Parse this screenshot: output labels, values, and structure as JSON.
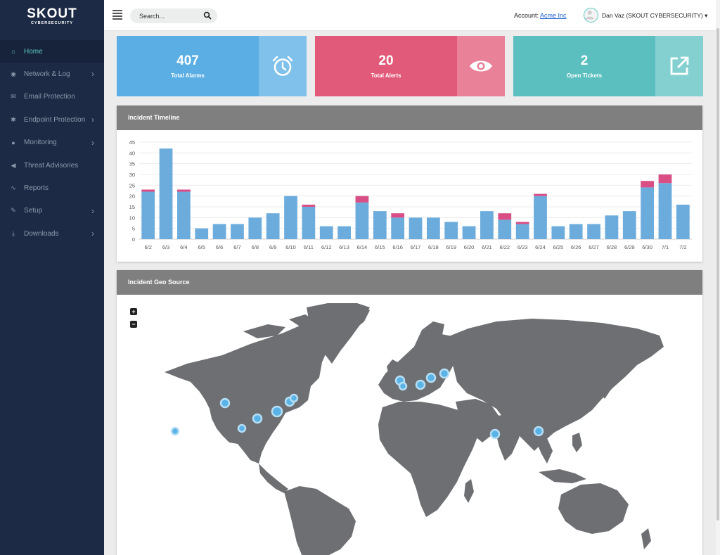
{
  "brand": {
    "name": "SKOUT",
    "sub": "CYBERSECURITY"
  },
  "sidebar": {
    "items": [
      {
        "label": "Home",
        "icon": "home-icon",
        "active": true,
        "has_children": false
      },
      {
        "label": "Network & Log",
        "icon": "network-icon",
        "active": false,
        "has_children": true
      },
      {
        "label": "Email Protection",
        "icon": "envelope-icon",
        "active": false,
        "has_children": false
      },
      {
        "label": "Endpoint Protection",
        "icon": "bug-icon",
        "active": false,
        "has_children": true
      },
      {
        "label": "Monitoring",
        "icon": "map-marker-icon",
        "active": false,
        "has_children": true
      },
      {
        "label": "Threat Advisories",
        "icon": "bullhorn-icon",
        "active": false,
        "has_children": false
      },
      {
        "label": "Reports",
        "icon": "line-chart-icon",
        "active": false,
        "has_children": false
      },
      {
        "label": "Setup",
        "icon": "wrench-icon",
        "active": false,
        "has_children": true
      },
      {
        "label": "Downloads",
        "icon": "download-icon",
        "active": false,
        "has_children": true
      }
    ]
  },
  "header": {
    "search_placeholder": "Search...",
    "account_label": "Account:",
    "account_name": "Acme Inc",
    "user": "Dan Vaz (SKOUT CYBERSECURITY)",
    "user_caret": "▾"
  },
  "stats": [
    {
      "value": "407",
      "label": "Total Alarms",
      "icon": "alarm-clock-icon",
      "color": "#5aaee3",
      "side_color": "#7fc1ea"
    },
    {
      "value": "20",
      "label": "Total Alerts",
      "icon": "eye-icon",
      "color": "#e25a7a",
      "side_color": "#e98198"
    },
    {
      "value": "2",
      "label": "Open Tickets",
      "icon": "external-link-icon",
      "color": "#5cbfbf",
      "side_color": "#84d0d0"
    }
  ],
  "timeline": {
    "title": "Incident Timeline",
    "chart_data": {
      "type": "bar",
      "stacked": true,
      "categories": [
        "6/2",
        "6/3",
        "6/4",
        "6/5",
        "6/6",
        "6/7",
        "6/8",
        "6/9",
        "6/10",
        "6/11",
        "6/12",
        "6/13",
        "6/14",
        "6/15",
        "6/16",
        "6/17",
        "6/18",
        "6/19",
        "6/20",
        "6/21",
        "6/22",
        "6/23",
        "6/24",
        "6/25",
        "6/26",
        "6/27",
        "6/28",
        "6/29",
        "6/30",
        "7/1",
        "7/2"
      ],
      "series": [
        {
          "values": [
            22,
            42,
            22,
            5,
            7,
            7,
            10,
            12,
            20,
            15,
            6,
            6,
            17,
            13,
            10,
            10,
            10,
            8,
            6,
            13,
            9,
            7,
            20,
            6,
            7,
            7,
            11,
            13,
            24,
            26,
            16
          ],
          "color": "#6cacdc"
        },
        {
          "values": [
            1,
            0,
            1,
            0,
            0,
            0,
            0,
            0,
            0,
            1,
            0,
            0,
            3,
            0,
            2,
            0,
            0,
            0,
            0,
            0,
            3,
            1,
            1,
            0,
            0,
            0,
            0,
            0,
            3,
            4,
            0
          ],
          "color": "#d94f85"
        }
      ],
      "yticks": [
        0,
        5,
        10,
        15,
        20,
        25,
        30,
        35,
        40,
        45
      ],
      "ylim": [
        0,
        45
      ],
      "grid": true
    }
  },
  "geo": {
    "title": "Incident Geo Source",
    "zoom_in": "+",
    "zoom_out": "−",
    "land_color": "#6d6f72",
    "marker_color": "#5ab3e6"
  }
}
